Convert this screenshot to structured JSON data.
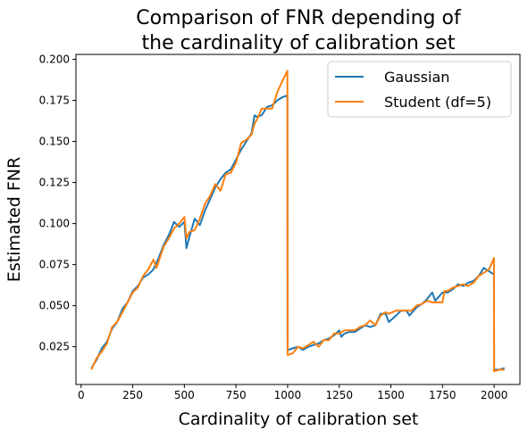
{
  "chart_data": {
    "type": "line",
    "title_lines": [
      "Comparison of FNR depending of",
      "the cardinality of calibration set"
    ],
    "xlabel": "Cardinality of calibration set",
    "ylabel": "Estimated FNR",
    "xlim": [
      -25,
      2125
    ],
    "ylim": [
      0.002,
      0.203
    ],
    "xticks": [
      0,
      250,
      500,
      750,
      1000,
      1250,
      1500,
      1750,
      2000
    ],
    "yticks": [
      0.025,
      0.05,
      0.075,
      0.1,
      0.125,
      0.15,
      0.175,
      0.2
    ],
    "ytick_labels": [
      "0.025",
      "0.050",
      "0.075",
      "0.100",
      "0.125",
      "0.150",
      "0.175",
      "0.200"
    ],
    "grid": false,
    "legend_position": "top-right",
    "series": [
      {
        "name": "Gaussian",
        "color": "#1f77b4",
        "points": [
          [
            50,
            0.012
          ],
          [
            75,
            0.017
          ],
          [
            100,
            0.024
          ],
          [
            125,
            0.028
          ],
          [
            150,
            0.036
          ],
          [
            175,
            0.04
          ],
          [
            200,
            0.048
          ],
          [
            225,
            0.052
          ],
          [
            250,
            0.059
          ],
          [
            275,
            0.062
          ],
          [
            300,
            0.067
          ],
          [
            325,
            0.069
          ],
          [
            350,
            0.072
          ],
          [
            375,
            0.079
          ],
          [
            400,
            0.087
          ],
          [
            425,
            0.093
          ],
          [
            450,
            0.101
          ],
          [
            475,
            0.098
          ],
          [
            500,
            0.101
          ],
          [
            510,
            0.085
          ],
          [
            525,
            0.092
          ],
          [
            550,
            0.103
          ],
          [
            575,
            0.099
          ],
          [
            600,
            0.108
          ],
          [
            625,
            0.115
          ],
          [
            650,
            0.122
          ],
          [
            675,
            0.127
          ],
          [
            700,
            0.131
          ],
          [
            725,
            0.133
          ],
          [
            750,
            0.139
          ],
          [
            775,
            0.145
          ],
          [
            800,
            0.15
          ],
          [
            825,
            0.155
          ],
          [
            840,
            0.166
          ],
          [
            850,
            0.165
          ],
          [
            875,
            0.166
          ],
          [
            890,
            0.169
          ],
          [
            900,
            0.171
          ],
          [
            925,
            0.172
          ],
          [
            950,
            0.175
          ],
          [
            975,
            0.177
          ],
          [
            999,
            0.178
          ],
          [
            1000,
            0.023
          ],
          [
            1025,
            0.024
          ],
          [
            1050,
            0.025
          ],
          [
            1075,
            0.023
          ],
          [
            1100,
            0.025
          ],
          [
            1125,
            0.026
          ],
          [
            1150,
            0.027
          ],
          [
            1175,
            0.029
          ],
          [
            1200,
            0.03
          ],
          [
            1225,
            0.032
          ],
          [
            1250,
            0.035
          ],
          [
            1260,
            0.031
          ],
          [
            1275,
            0.033
          ],
          [
            1300,
            0.034
          ],
          [
            1325,
            0.034
          ],
          [
            1350,
            0.036
          ],
          [
            1375,
            0.038
          ],
          [
            1400,
            0.037
          ],
          [
            1425,
            0.038
          ],
          [
            1450,
            0.045
          ],
          [
            1475,
            0.045
          ],
          [
            1490,
            0.04
          ],
          [
            1525,
            0.044
          ],
          [
            1550,
            0.047
          ],
          [
            1575,
            0.047
          ],
          [
            1590,
            0.044
          ],
          [
            1625,
            0.049
          ],
          [
            1650,
            0.051
          ],
          [
            1675,
            0.054
          ],
          [
            1700,
            0.058
          ],
          [
            1715,
            0.053
          ],
          [
            1750,
            0.058
          ],
          [
            1775,
            0.058
          ],
          [
            1800,
            0.06
          ],
          [
            1825,
            0.063
          ],
          [
            1850,
            0.062
          ],
          [
            1875,
            0.064
          ],
          [
            1900,
            0.065
          ],
          [
            1925,
            0.068
          ],
          [
            1950,
            0.073
          ],
          [
            1975,
            0.071
          ],
          [
            1999,
            0.069
          ],
          [
            2000,
            0.011
          ],
          [
            2025,
            0.011
          ],
          [
            2050,
            0.012
          ]
        ]
      },
      {
        "name": "Student (df=5)",
        "color": "#ff7f0e",
        "points": [
          [
            50,
            0.011
          ],
          [
            75,
            0.018
          ],
          [
            100,
            0.022
          ],
          [
            125,
            0.027
          ],
          [
            150,
            0.037
          ],
          [
            175,
            0.04
          ],
          [
            200,
            0.046
          ],
          [
            225,
            0.052
          ],
          [
            250,
            0.058
          ],
          [
            275,
            0.061
          ],
          [
            300,
            0.068
          ],
          [
            325,
            0.072
          ],
          [
            350,
            0.078
          ],
          [
            365,
            0.073
          ],
          [
            400,
            0.086
          ],
          [
            425,
            0.091
          ],
          [
            450,
            0.097
          ],
          [
            475,
            0.1
          ],
          [
            500,
            0.104
          ],
          [
            510,
            0.091
          ],
          [
            525,
            0.095
          ],
          [
            550,
            0.096
          ],
          [
            575,
            0.103
          ],
          [
            600,
            0.112
          ],
          [
            625,
            0.117
          ],
          [
            650,
            0.124
          ],
          [
            675,
            0.12
          ],
          [
            700,
            0.13
          ],
          [
            725,
            0.131
          ],
          [
            750,
            0.137
          ],
          [
            775,
            0.149
          ],
          [
            800,
            0.151
          ],
          [
            825,
            0.154
          ],
          [
            840,
            0.161
          ],
          [
            850,
            0.163
          ],
          [
            875,
            0.17
          ],
          [
            900,
            0.17
          ],
          [
            925,
            0.17
          ],
          [
            950,
            0.18
          ],
          [
            975,
            0.187
          ],
          [
            999,
            0.193
          ],
          [
            1000,
            0.02
          ],
          [
            1025,
            0.021
          ],
          [
            1050,
            0.025
          ],
          [
            1075,
            0.024
          ],
          [
            1100,
            0.026
          ],
          [
            1125,
            0.028
          ],
          [
            1150,
            0.025
          ],
          [
            1175,
            0.029
          ],
          [
            1200,
            0.029
          ],
          [
            1225,
            0.033
          ],
          [
            1250,
            0.033
          ],
          [
            1275,
            0.035
          ],
          [
            1300,
            0.035
          ],
          [
            1325,
            0.035
          ],
          [
            1350,
            0.037
          ],
          [
            1375,
            0.038
          ],
          [
            1400,
            0.041
          ],
          [
            1425,
            0.038
          ],
          [
            1450,
            0.044
          ],
          [
            1475,
            0.046
          ],
          [
            1490,
            0.045
          ],
          [
            1525,
            0.047
          ],
          [
            1550,
            0.047
          ],
          [
            1575,
            0.047
          ],
          [
            1600,
            0.047
          ],
          [
            1625,
            0.05
          ],
          [
            1650,
            0.051
          ],
          [
            1675,
            0.053
          ],
          [
            1700,
            0.052
          ],
          [
            1750,
            0.052
          ],
          [
            1760,
            0.059
          ],
          [
            1775,
            0.059
          ],
          [
            1800,
            0.061
          ],
          [
            1825,
            0.062
          ],
          [
            1850,
            0.063
          ],
          [
            1875,
            0.062
          ],
          [
            1900,
            0.064
          ],
          [
            1925,
            0.068
          ],
          [
            1950,
            0.07
          ],
          [
            1975,
            0.072
          ],
          [
            1999,
            0.079
          ],
          [
            2000,
            0.01
          ],
          [
            2025,
            0.011
          ],
          [
            2050,
            0.011
          ]
        ]
      }
    ]
  }
}
